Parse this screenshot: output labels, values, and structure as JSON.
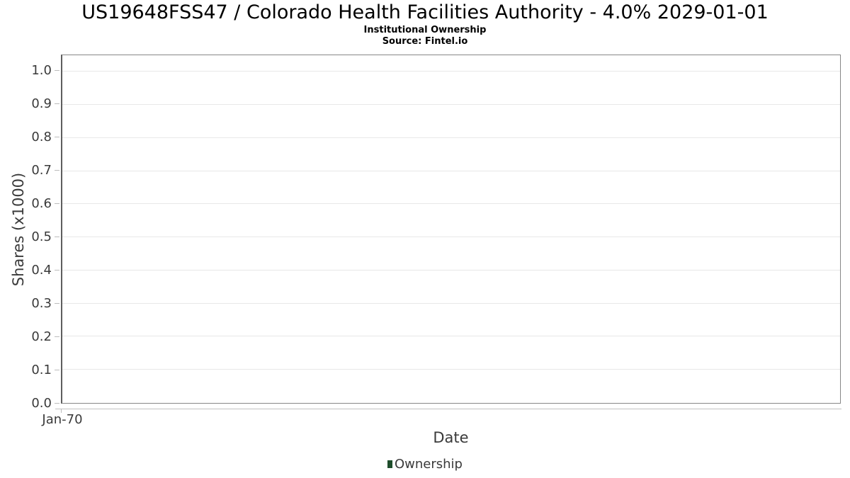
{
  "header": {
    "title": "US19648FSS47 / Colorado Health Facilities Authority - 4.0% 2029-01-01",
    "subtitle": "Institutional Ownership",
    "source": "Source: Fintel.io"
  },
  "chart_data": {
    "type": "bar",
    "title": "US19648FSS47 / Colorado Health Facilities Authority - 4.0% 2029-01-01",
    "subtitle": "Institutional Ownership",
    "source_note": "Source: Fintel.io",
    "xlabel": "Date",
    "ylabel": "Shares (x1000)",
    "x_tick_labels": [
      "Jan-70"
    ],
    "y_tick_labels": [
      "0.0",
      "0.1",
      "0.2",
      "0.3",
      "0.4",
      "0.5",
      "0.6",
      "0.7",
      "0.8",
      "0.9",
      "1.0"
    ],
    "ylim": [
      0,
      1.05
    ],
    "grid": true,
    "legend_position": "bottom",
    "series": [
      {
        "name": "Ownership",
        "color": "#1e4d2b",
        "x": [],
        "values": []
      }
    ]
  },
  "colors": {
    "series_green": "#1e4d2b",
    "grid_line": "#e8e8e8",
    "plot_border": "#878787",
    "axis_line": "#c2c2c2",
    "tick_mark": "#bcbcbc",
    "text_dark": "#3a3a3a",
    "title_text": "#000000",
    "background": "#ffffff"
  }
}
